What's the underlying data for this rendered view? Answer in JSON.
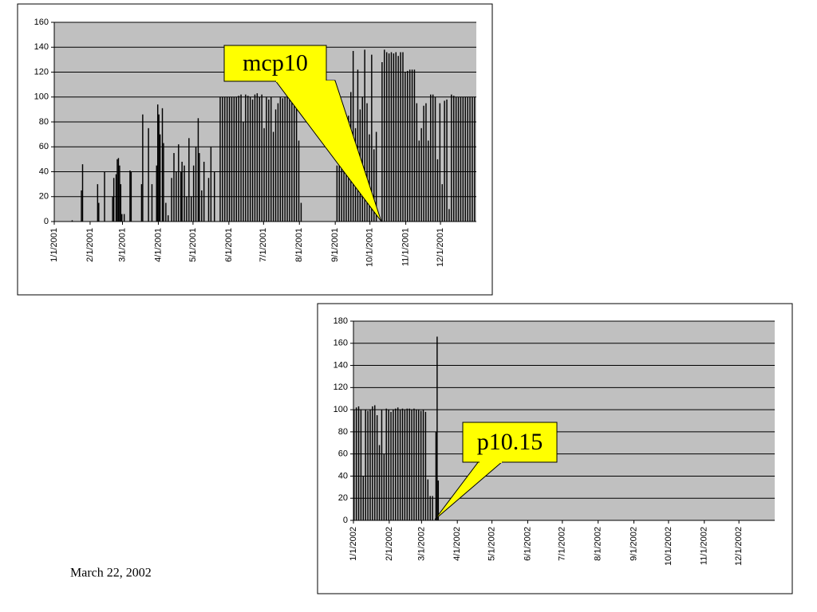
{
  "footer": "March 22, 2002",
  "chart_data": [
    {
      "type": "bar",
      "annotation": "mcp10",
      "color": "#000000",
      "grid": true,
      "xlim": [
        0,
        365
      ],
      "ylim": [
        0,
        160
      ],
      "yticks": [
        0,
        20,
        40,
        60,
        80,
        100,
        120,
        140,
        160
      ],
      "xticks": [
        {
          "value": 0,
          "label": "1/1/2001"
        },
        {
          "value": 31,
          "label": "2/1/2001"
        },
        {
          "value": 59,
          "label": "3/1/2001"
        },
        {
          "value": 90,
          "label": "4/1/2001"
        },
        {
          "value": 120,
          "label": "5/1/2001"
        },
        {
          "value": 151,
          "label": "6/1/2001"
        },
        {
          "value": 181,
          "label": "7/1/2001"
        },
        {
          "value": 212,
          "label": "8/1/2001"
        },
        {
          "value": 243,
          "label": "9/1/2001"
        },
        {
          "value": 273,
          "label": "10/1/2001"
        },
        {
          "value": 304,
          "label": "11/1/2001"
        },
        {
          "value": 334,
          "label": "12/1/2001"
        }
      ],
      "x": [
        15,
        23,
        24,
        37,
        38,
        43,
        50,
        51,
        53,
        54,
        55,
        56,
        57,
        58,
        60,
        65,
        66,
        75,
        76,
        81,
        84,
        88,
        89,
        90,
        91,
        93,
        94,
        96,
        98,
        101,
        103,
        105,
        107,
        109,
        110,
        112,
        114,
        116,
        118,
        120,
        122,
        124,
        125,
        127,
        129,
        133,
        135,
        138,
        143,
        145,
        147,
        149,
        151,
        153,
        155,
        157,
        159,
        161,
        163,
        165,
        167,
        169,
        171,
        173,
        175,
        177,
        179,
        181,
        183,
        185,
        187,
        189,
        191,
        193,
        195,
        197,
        199,
        201,
        203,
        205,
        207,
        209,
        211,
        213,
        244,
        246,
        248,
        250,
        252,
        254,
        256,
        258,
        260,
        262,
        264,
        266,
        268,
        270,
        272,
        274,
        276,
        278,
        283,
        285,
        287,
        289,
        291,
        293,
        295,
        297,
        299,
        301,
        303,
        305,
        307,
        309,
        311,
        313,
        315,
        317,
        319,
        321,
        323,
        325,
        327,
        329,
        331,
        333,
        335,
        337,
        339,
        341,
        343,
        345,
        347,
        349,
        351,
        353,
        355,
        357,
        359,
        361,
        363
      ],
      "values": [
        1,
        25,
        46,
        30,
        15,
        40,
        20,
        35,
        38,
        50,
        51,
        45,
        30,
        6,
        6,
        41,
        40,
        30,
        86,
        75,
        30,
        45,
        94,
        86,
        70,
        91,
        63,
        15,
        5,
        35,
        55,
        40,
        62,
        40,
        48,
        45,
        20,
        67,
        20,
        45,
        60,
        83,
        55,
        25,
        48,
        35,
        60,
        40,
        100,
        100,
        100,
        100,
        100,
        100,
        100,
        100,
        101,
        102,
        80,
        102,
        101,
        100,
        98,
        102,
        103,
        100,
        102,
        75,
        100,
        98,
        100,
        72,
        90,
        95,
        100,
        99,
        100,
        100,
        98,
        101,
        100,
        99,
        65,
        15,
        45,
        90,
        97,
        50,
        80,
        85,
        104,
        137,
        75,
        122,
        90,
        100,
        138,
        95,
        70,
        134,
        58,
        72,
        128,
        138,
        136,
        135,
        136,
        135,
        136,
        133,
        136,
        136,
        120,
        121,
        122,
        122,
        122,
        95,
        65,
        75,
        93,
        95,
        65,
        102,
        102,
        100,
        50,
        95,
        30,
        97,
        98,
        10,
        102,
        101,
        100,
        100,
        100,
        100,
        100,
        100,
        100,
        100,
        100
      ]
    },
    {
      "type": "bar",
      "annotation": "p10.15",
      "color": "#000000",
      "grid": true,
      "xlim": [
        0,
        365
      ],
      "ylim": [
        0,
        180
      ],
      "yticks": [
        0,
        20,
        40,
        60,
        80,
        100,
        120,
        140,
        160,
        180
      ],
      "xticks": [
        {
          "value": 0,
          "label": "1/1/2002"
        },
        {
          "value": 31,
          "label": "2/1/2002"
        },
        {
          "value": 59,
          "label": "3/1/2002"
        },
        {
          "value": 90,
          "label": "4/1/2002"
        },
        {
          "value": 120,
          "label": "5/1/2002"
        },
        {
          "value": 151,
          "label": "6/1/2002"
        },
        {
          "value": 181,
          "label": "7/1/2002"
        },
        {
          "value": 212,
          "label": "8/1/2002"
        },
        {
          "value": 243,
          "label": "9/1/2002"
        },
        {
          "value": 273,
          "label": "10/1/2002"
        },
        {
          "value": 304,
          "label": "11/1/2002"
        },
        {
          "value": 334,
          "label": "12/1/2002"
        }
      ],
      "x": [
        0,
        2,
        4,
        6,
        8,
        10,
        12,
        14,
        16,
        18,
        20,
        22,
        24,
        26,
        28,
        30,
        32,
        34,
        36,
        38,
        40,
        42,
        44,
        46,
        48,
        50,
        52,
        54,
        56,
        58,
        60,
        62,
        64,
        66,
        68,
        71,
        72,
        73
      ],
      "values": [
        100,
        102,
        103,
        100,
        40,
        100,
        99,
        100,
        103,
        104,
        95,
        68,
        100,
        60,
        101,
        100,
        98,
        100,
        101,
        102,
        100,
        101,
        100,
        101,
        101,
        100,
        101,
        100,
        100,
        99,
        100,
        98,
        37,
        22,
        22,
        80,
        166,
        36
      ]
    }
  ]
}
